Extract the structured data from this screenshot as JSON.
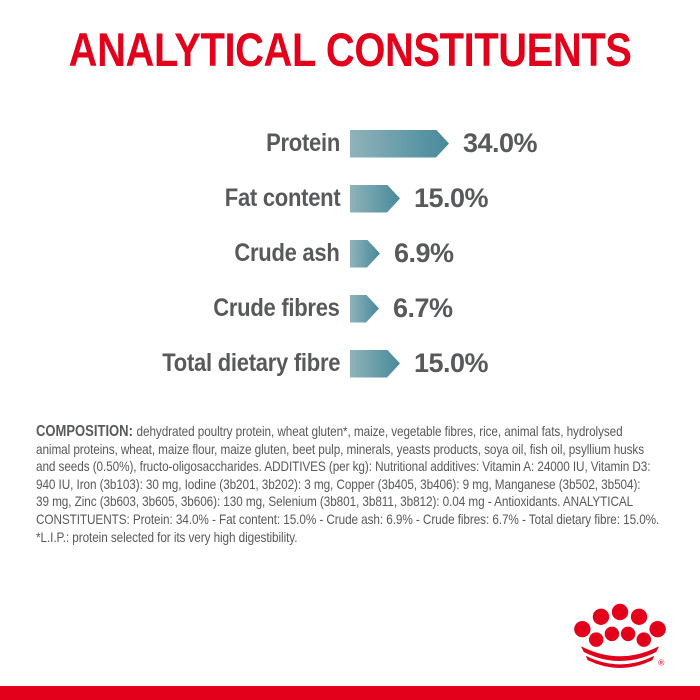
{
  "title": "ANALYTICAL CONSTITUENTS",
  "colors": {
    "brand_red": "#E2001A",
    "bar_gradient_start": "#8FB3BA",
    "bar_gradient_end": "#47899B",
    "text_gray": "#58595B"
  },
  "chart_data": {
    "type": "bar",
    "orientation": "horizontal",
    "title": "ANALYTICAL CONSTITUENTS",
    "xlabel": "",
    "ylabel": "",
    "unit": "%",
    "axis_visible": false,
    "legend": "none",
    "bar_style": "arrow-right-gradient",
    "categories": [
      "Protein",
      "Fat content",
      "Crude ash",
      "Crude fibres",
      "Total dietary fibre"
    ],
    "values": [
      34.0,
      15.0,
      6.9,
      6.7,
      15.0
    ],
    "value_labels": [
      "34.0%",
      "15.0%",
      "6.9%",
      "6.7%",
      "15.0%"
    ]
  },
  "composition": {
    "bold_prefix": "COMPOSITION:",
    "lines": [
      "dehydrated poultry protein, wheat gluten*, maize, vegetable fibres, rice, animal fats, hydrolysed",
      "animal proteins, wheat, maize flour, maize gluten, beet pulp, minerals, yeasts products, soya oil, fish oil, psyllium husks",
      "and seeds (0.50%), fructo-oligosaccharides. ADDITIVES (per kg): Nutritional additives: Vitamin A: 24000 IU, Vitamin D3:",
      "940 IU, Iron (3b103): 30 mg, Iodine (3b201, 3b202): 3 mg, Copper (3b405, 3b406): 9 mg, Manganese (3b502, 3b504):",
      "39 mg, Zinc (3b603, 3b605, 3b606): 130 mg, Selenium (3b801, 3b811, 3b812): 0.04 mg - Antioxidants. ANALYTICAL",
      "CONSTITUENTS: Protein: 34.0% - Fat content: 15.0% - Crude ash: 6.9% - Crude fibres: 6.7% - Total dietary fibre: 15.0%.",
      "*L.I.P.: protein selected for its very high digestibility."
    ]
  },
  "logo": {
    "name": "royal-canin-crown-logo",
    "registered_mark": "®",
    "color": "#E2001A"
  }
}
